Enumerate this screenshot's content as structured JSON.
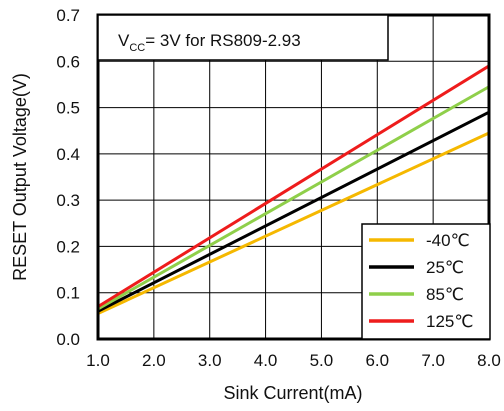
{
  "chart_data": {
    "type": "line",
    "title": "",
    "xlabel": "Sink Current(mA)",
    "ylabel": "RESET Output Voltage(V)",
    "xlim": [
      1.0,
      8.0
    ],
    "ylim": [
      0.0,
      0.7
    ],
    "x_ticks": [
      "1.0",
      "2.0",
      "3.0",
      "4.0",
      "5.0",
      "6.0",
      "7.0",
      "8.0"
    ],
    "y_ticks": [
      "0.0",
      "0.1",
      "0.2",
      "0.3",
      "0.4",
      "0.5",
      "0.6",
      "0.7"
    ],
    "grid": true,
    "legend_position": "bottom-right",
    "annotation": {
      "prefix": "V",
      "subscript": "CC",
      "suffix": "= 3V for RS809-2.93"
    },
    "series": [
      {
        "name": "-40℃",
        "color": "#f5b800",
        "x": [
          1.0,
          8.0
        ],
        "y": [
          0.055,
          0.445
        ]
      },
      {
        "name": "25℃",
        "color": "#000000",
        "x": [
          1.0,
          8.0
        ],
        "y": [
          0.06,
          0.49
        ]
      },
      {
        "name": "85℃",
        "color": "#8fcf4a",
        "x": [
          1.0,
          8.0
        ],
        "y": [
          0.065,
          0.545
        ]
      },
      {
        "name": "125℃",
        "color": "#ee1c1c",
        "x": [
          1.0,
          8.0
        ],
        "y": [
          0.07,
          0.59
        ]
      }
    ]
  }
}
